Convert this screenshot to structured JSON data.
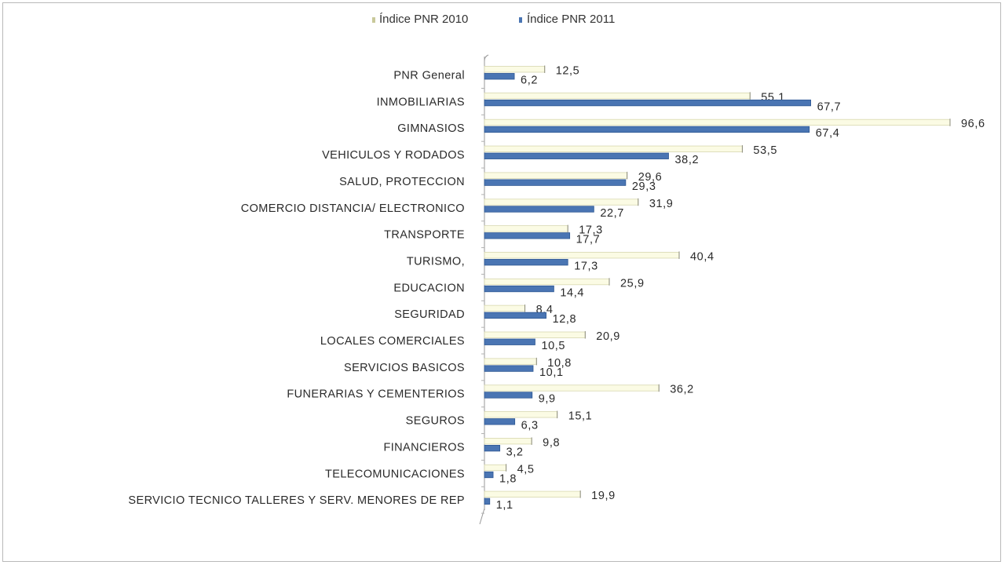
{
  "chart_data": {
    "type": "bar",
    "orientation": "horizontal",
    "categories": [
      "PNR General",
      "INMOBILIARIAS",
      "GIMNASIOS",
      "VEHICULOS Y RODADOS",
      "SALUD, PROTECCION",
      "COMERCIO DISTANCIA/ ELECTRONICO",
      "TRANSPORTE",
      "TURISMO,",
      "EDUCACION",
      "SEGURIDAD",
      "LOCALES COMERCIALES",
      "SERVICIOS BASICOS",
      "FUNERARIAS Y CEMENTERIOS",
      "SEGUROS",
      "FINANCIEROS",
      "TELECOMUNICACIONES",
      "SERVICIO TECNICO TALLERES Y SERV. MENORES DE REP"
    ],
    "series": [
      {
        "name": "Índice PNR 2010",
        "color": "#fbfbe4",
        "values": [
          12.5,
          55.1,
          96.6,
          53.5,
          29.6,
          31.9,
          17.3,
          40.4,
          25.9,
          8.4,
          20.9,
          10.8,
          36.2,
          15.1,
          9.8,
          4.5,
          19.9
        ],
        "labels": [
          "12,5",
          "55,1",
          "96,6",
          "53,5",
          "29,6",
          "31,9",
          "17,3",
          "40,4",
          "25,9",
          "8,4",
          "20,9",
          "10,8",
          "36,2",
          "15,1",
          "9,8",
          "4,5",
          "19,9"
        ]
      },
      {
        "name": "Índice PNR 2011",
        "color": "#4a75b3",
        "values": [
          6.2,
          67.7,
          67.4,
          38.2,
          29.3,
          22.7,
          17.7,
          17.3,
          14.4,
          12.8,
          10.5,
          10.1,
          9.9,
          6.3,
          3.2,
          1.8,
          1.1
        ],
        "labels": [
          "6,2",
          "67,7",
          "67,4",
          "38,2",
          "29,3",
          "22,7",
          "17,7",
          "17,3",
          "14,4",
          "12,8",
          "10,5",
          "10,1",
          "9,9",
          "6,3",
          "3,2",
          "1,8",
          "1,1"
        ]
      }
    ],
    "xlim": [
      0,
      100
    ],
    "grid": false,
    "legend_position": "top"
  }
}
